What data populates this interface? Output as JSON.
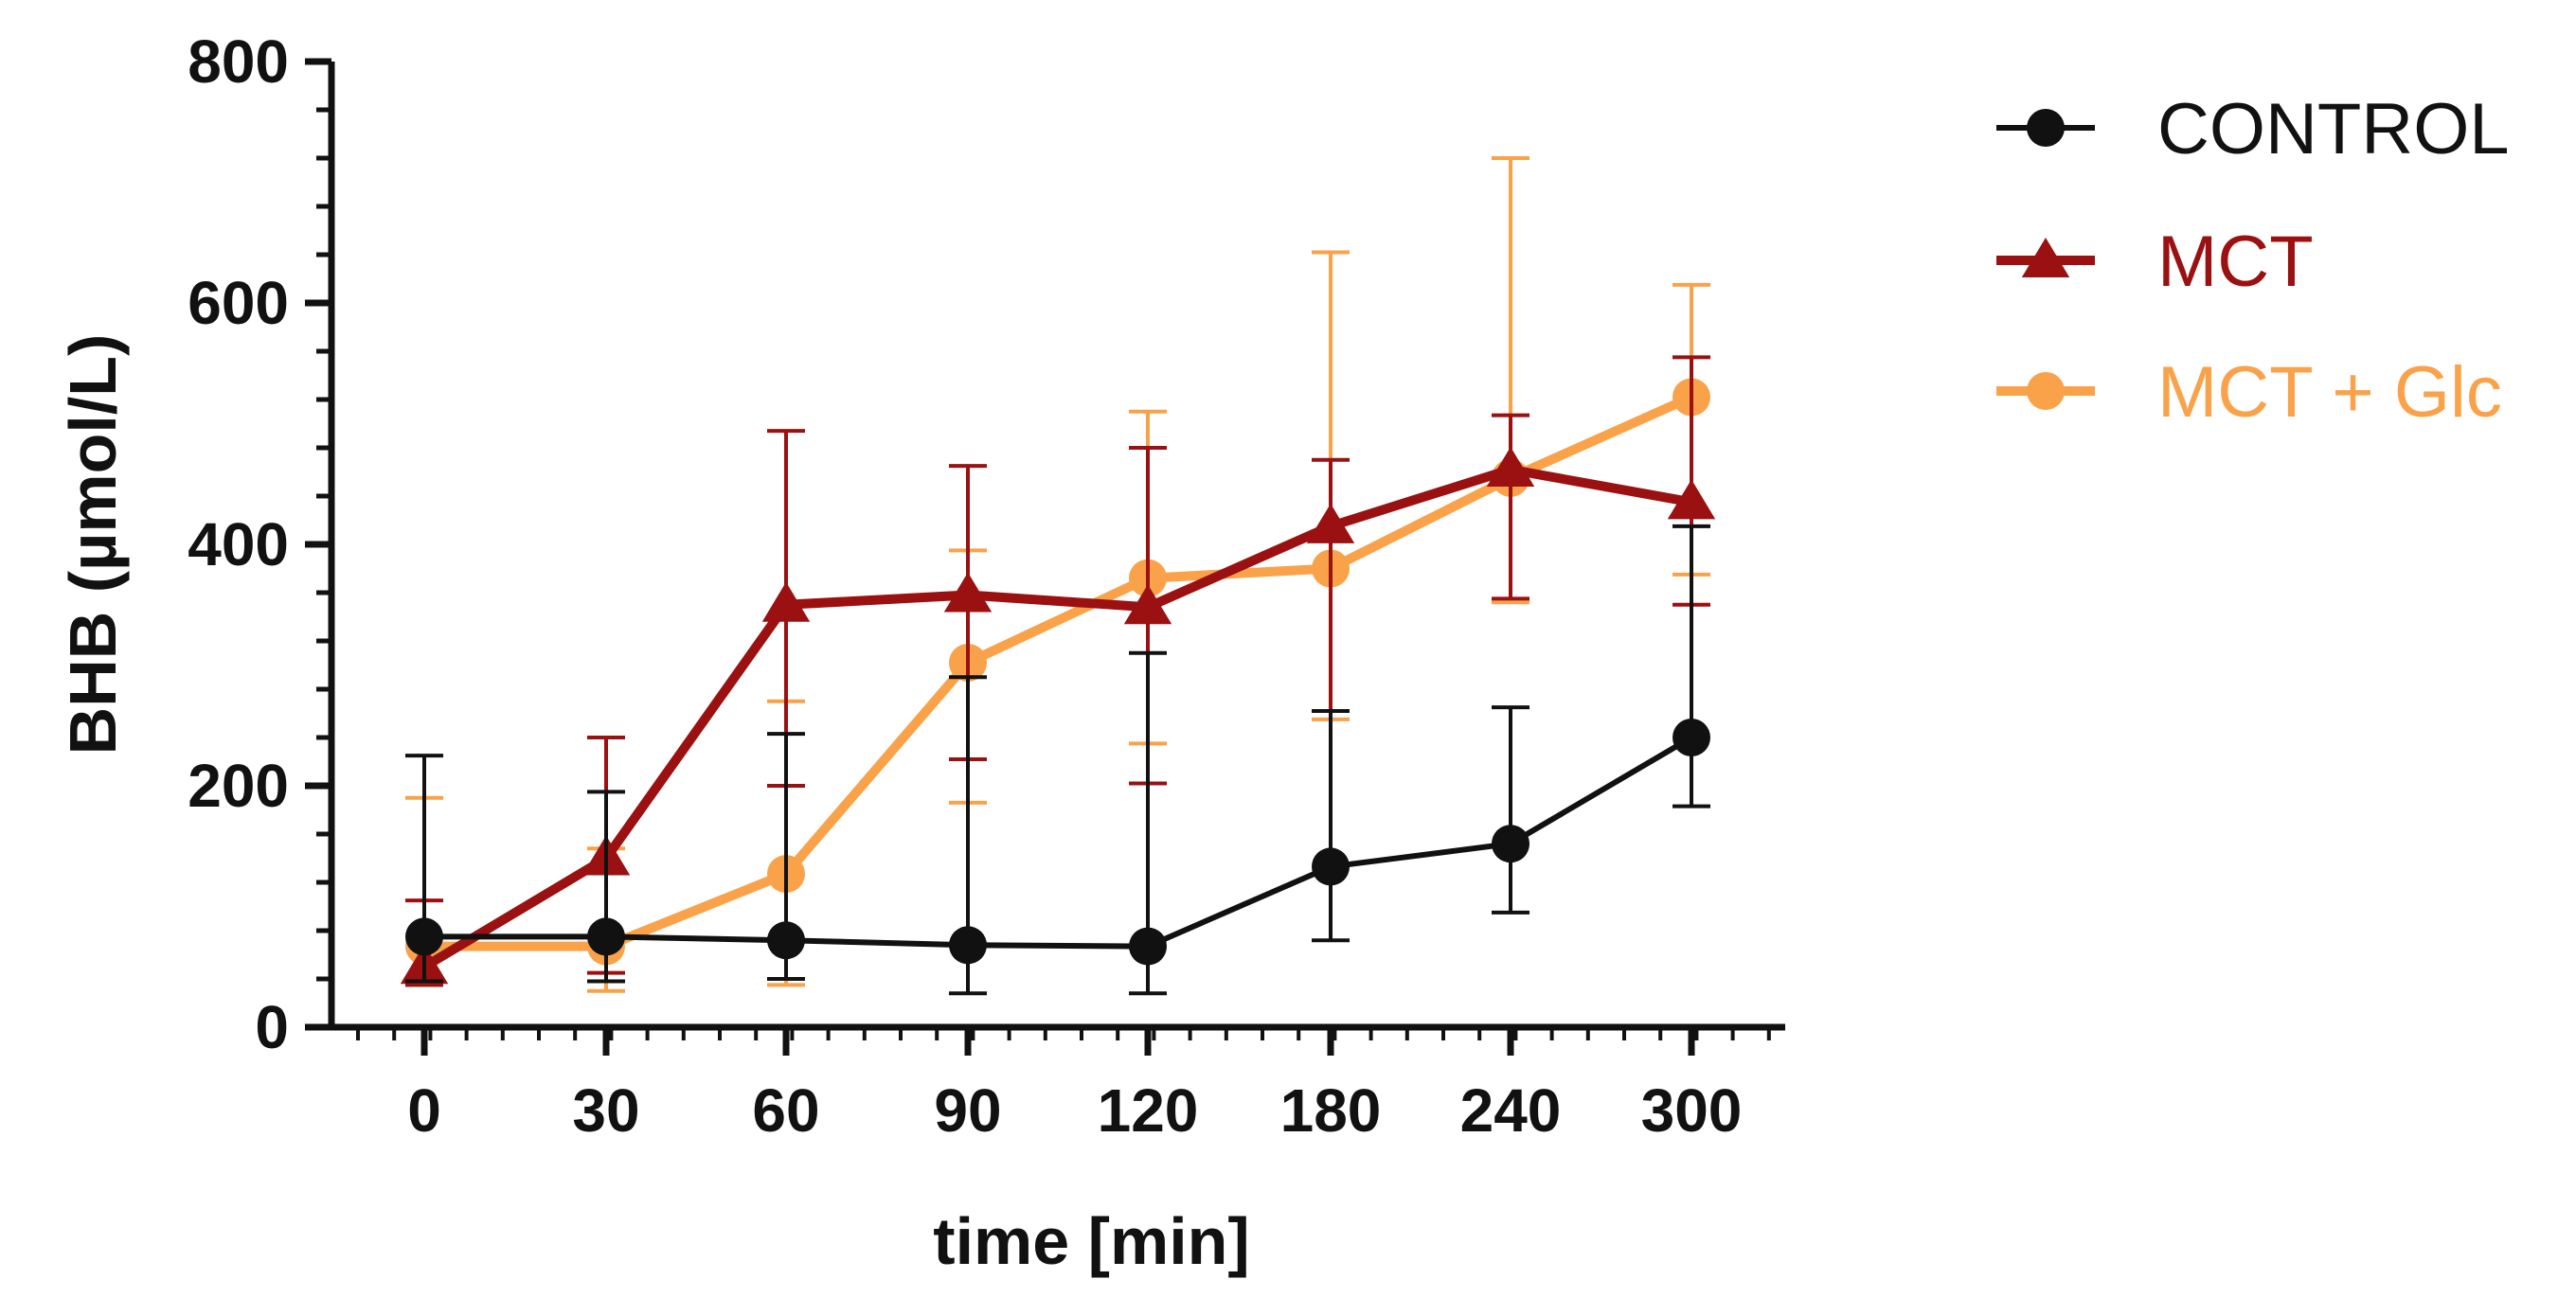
{
  "chart_data": {
    "type": "line",
    "title": "",
    "xlabel": "time [min]",
    "ylabel": "BHB (µmol/L)",
    "categories": [
      "0",
      "30",
      "60",
      "90",
      "120",
      "180",
      "240",
      "300"
    ],
    "ylim": [
      0,
      800
    ],
    "yticks": [
      "0",
      "200",
      "400",
      "600",
      "800"
    ],
    "legend_position": "right",
    "series": [
      {
        "name": "CONTROL",
        "color": "#111111",
        "marker": "circle",
        "values": [
          75,
          75,
          72,
          68,
          67,
          133,
          152,
          240
        ],
        "err_upper": [
          225,
          195,
          243,
          290,
          310,
          262,
          265,
          415
        ],
        "err_lower": [
          38,
          38,
          40,
          28,
          28,
          72,
          95,
          183
        ]
      },
      {
        "name": "MCT",
        "color": "#9b1010",
        "marker": "triangle",
        "values": [
          50,
          140,
          350,
          358,
          348,
          415,
          462,
          435
        ],
        "err_upper": [
          105,
          240,
          494,
          465,
          480,
          470,
          507,
          555
        ],
        "err_lower": [
          35,
          45,
          200,
          222,
          202,
          262,
          355,
          350
        ]
      },
      {
        "name": "MCT + Glc",
        "color": "#f9a24a",
        "marker": "circle",
        "values": [
          67,
          67,
          127,
          302,
          372,
          380,
          455,
          522
        ],
        "err_upper": [
          190,
          148,
          270,
          395,
          510,
          642,
          720,
          615
        ],
        "err_lower": [
          35,
          30,
          35,
          186,
          235,
          255,
          352,
          375
        ]
      }
    ]
  }
}
